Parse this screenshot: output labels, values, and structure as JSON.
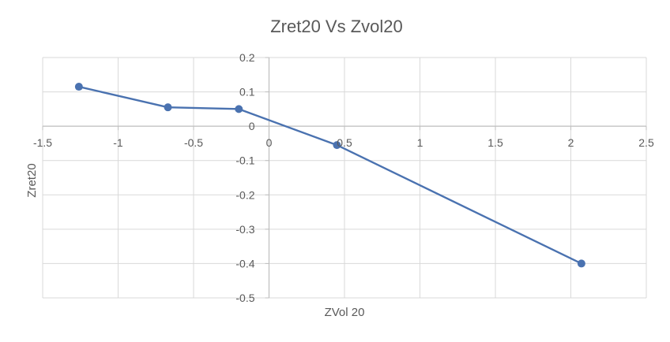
{
  "chart_data": {
    "type": "scatter",
    "title": "Zret20 Vs Zvol20",
    "xlabel": "ZVol 20",
    "ylabel": "Zret20",
    "xlim": [
      -1.5,
      2.5
    ],
    "ylim": [
      -0.5,
      0.2
    ],
    "x_ticks": [
      "-1.5",
      "-1",
      "-0.5",
      "0",
      "0.5",
      "1",
      "1.5",
      "2",
      "2.5"
    ],
    "y_ticks": [
      "0.2",
      "0.1",
      "0",
      "-0.1",
      "-0.2",
      "-0.3",
      "-0.4",
      "-0.5"
    ],
    "series": [
      {
        "x": [
          -1.26,
          -0.67,
          -0.2,
          0.45,
          2.07
        ],
        "y": [
          0.115,
          0.055,
          0.05,
          -0.055,
          -0.4
        ],
        "color": "#4a72b0",
        "lines": true,
        "markers": true
      }
    ],
    "grid": true,
    "legend": "none"
  }
}
